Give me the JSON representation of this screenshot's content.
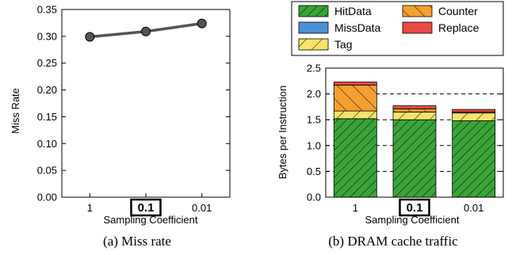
{
  "chart_data": [
    {
      "type": "line",
      "caption": "(a) Miss rate",
      "xlabel": "Sampling Coefficient",
      "ylabel": "Miss Rate",
      "categories": [
        "1",
        "0.1",
        "0.01"
      ],
      "highlighted_category": "0.1",
      "ylim": [
        0,
        0.35
      ],
      "yticks": [
        "0.00",
        "0.05",
        "0.10",
        "0.15",
        "0.20",
        "0.25",
        "0.30",
        "0.35"
      ],
      "grid": false,
      "series": [
        {
          "values": [
            0.299,
            0.309,
            0.324
          ],
          "color": "#555555"
        }
      ]
    },
    {
      "type": "bar",
      "stacked": true,
      "caption": "(b) DRAM cache traffic",
      "xlabel": "Sampling Coefficient",
      "ylabel": "Bytes per Instruction",
      "categories": [
        "1",
        "0.1",
        "0.01"
      ],
      "highlighted_category": "0.1",
      "ylim": [
        0,
        2.5
      ],
      "yticks": [
        "0.0",
        "0.5",
        "1.0",
        "1.5",
        "2.0",
        "2.5"
      ],
      "grid": "horizontal dashed",
      "legend_placement": "top",
      "series": [
        {
          "name": "HitData",
          "values": [
            1.52,
            1.5,
            1.48
          ],
          "color": "#3aa537",
          "hatch": "//"
        },
        {
          "name": "MissData",
          "values": [
            0.0,
            0.0,
            0.0
          ],
          "color": "#4a90d6",
          "hatch": ""
        },
        {
          "name": "Tag",
          "values": [
            0.15,
            0.15,
            0.15
          ],
          "color": "#f7e36a",
          "hatch": "/"
        },
        {
          "name": "Counter",
          "values": [
            0.5,
            0.06,
            0.02
          ],
          "color": "#f5a030",
          "hatch": "\\"
        },
        {
          "name": "Replace",
          "values": [
            0.06,
            0.06,
            0.05
          ],
          "color": "#ea4a45",
          "hatch": ""
        }
      ]
    }
  ]
}
